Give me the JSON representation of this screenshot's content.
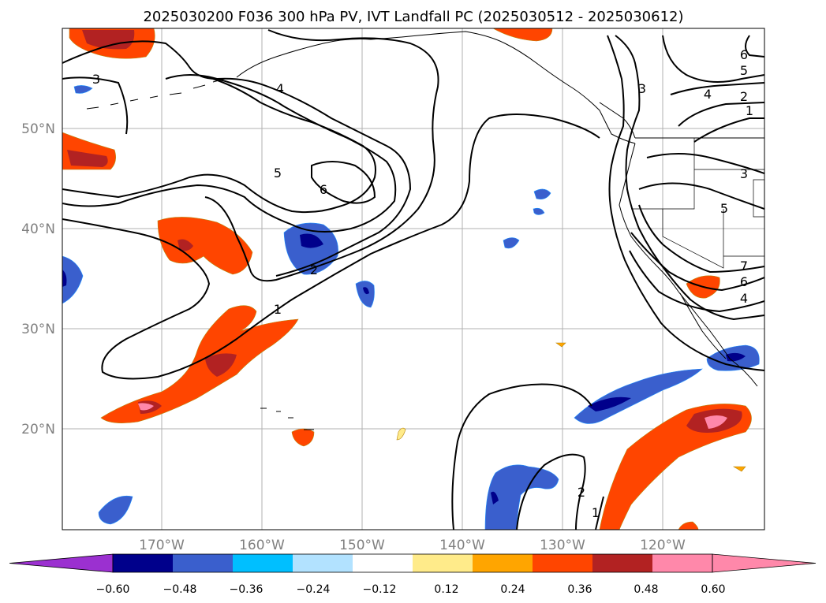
{
  "title": "2025030200 F036 300 hPa PV, IVT Landfall PC (2025030512 - 2025030612)",
  "lat_labels": [
    "50°N",
    "40°N",
    "30°N",
    "20°N"
  ],
  "lon_labels": [
    "170°W",
    "160°W",
    "150°W",
    "140°W",
    "130°W",
    "120°W"
  ],
  "contour_labels": [
    "3",
    "3",
    "4",
    "5",
    "6",
    "1",
    "2",
    "6",
    "5",
    "4",
    "2",
    "1",
    "3",
    "5",
    "7",
    "6",
    "4",
    "2",
    "1"
  ],
  "colorbar": {
    "colors": [
      "#9b30d0",
      "#00008b",
      "#3a5fcd",
      "#00bfff",
      "#b2e2ff",
      "#ffffff",
      "#ffeb8a",
      "#ffa500",
      "#ff4500",
      "#b22222",
      "#ff88aa",
      "#ff88aa"
    ],
    "tick_labels": [
      "−0.60",
      "−0.48",
      "−0.36",
      "−0.24",
      "−0.12",
      "0.12",
      "0.24",
      "0.36",
      "0.48",
      "0.60"
    ]
  }
}
